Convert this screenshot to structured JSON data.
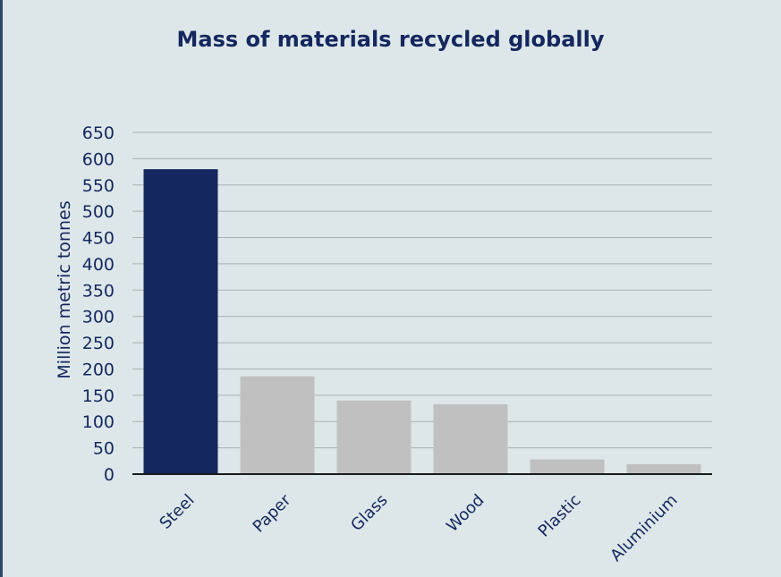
{
  "chart_data": {
    "type": "bar",
    "title": "Mass of materials recycled globally",
    "ylabel": "Million metric tonnes",
    "xlabel": "",
    "categories": [
      "Steel",
      "Paper",
      "Glass",
      "Wood",
      "Plastic",
      "Aluminium"
    ],
    "values": [
      580,
      186,
      140,
      133,
      28,
      19
    ],
    "ylim": [
      0,
      650
    ],
    "yticks": [
      0,
      50,
      100,
      150,
      200,
      250,
      300,
      350,
      400,
      450,
      500,
      550,
      600,
      650
    ],
    "grid": true,
    "colors": {
      "highlight": "#14275e",
      "default": "#c0c0c0",
      "grid": "#a9b0b3",
      "axis": "#1a1a1a",
      "text": "#14275e",
      "background": "#dde7e9"
    },
    "highlight_index": 0
  }
}
